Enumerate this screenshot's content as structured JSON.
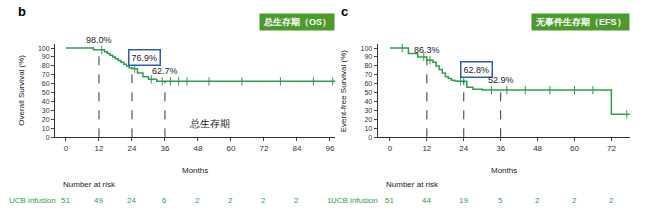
{
  "chart_data": [
    {
      "type": "line",
      "label": "b",
      "title": "总生存期（OS）",
      "xlabel": "Months",
      "ylabel": "Overall Survival (%)",
      "note": "总生存期",
      "color": "#2e9e4e",
      "line_style": "step",
      "marker": "tick",
      "grid": false,
      "x": [
        0,
        10,
        12,
        14,
        15,
        16,
        17,
        18,
        19,
        20,
        21,
        22,
        23,
        24,
        26,
        28,
        30,
        33,
        98
      ],
      "values": [
        100,
        98,
        98,
        96,
        94,
        92,
        90,
        88,
        86,
        84,
        82,
        80,
        78,
        76.9,
        72,
        68,
        65,
        62.7,
        62.7
      ],
      "censored": {
        "x": [
          13,
          25,
          31,
          35,
          38,
          41,
          44,
          52,
          64,
          78,
          90,
          97
        ],
        "values": [
          98,
          76.9,
          65,
          62.7,
          62.7,
          62.7,
          62.7,
          62.7,
          62.7,
          62.7,
          62.7,
          62.7
        ]
      },
      "annotations": [
        {
          "x": 12,
          "y": 98.0,
          "text": "98.0%"
        },
        {
          "x": 24,
          "y": 76.9,
          "text": "76.9%"
        },
        {
          "x": 36,
          "y": 62.7,
          "text": "62.7%"
        }
      ],
      "xlim": [
        -4,
        98
      ],
      "xticks": [
        0,
        12,
        24,
        36,
        48,
        60,
        72,
        84,
        96
      ],
      "ylim": [
        0,
        105
      ],
      "yticks": [
        0,
        10,
        20,
        30,
        40,
        50,
        60,
        70,
        80,
        90,
        100
      ],
      "risk_table": {
        "title": "Number at risk",
        "name": "UCB infusion",
        "x": [
          0,
          12,
          24,
          36,
          48,
          60,
          72,
          84,
          96
        ],
        "values": [
          51,
          49,
          24,
          6,
          2,
          2,
          2,
          2,
          1
        ]
      }
    },
    {
      "type": "line",
      "label": "c",
      "title": "无事件生存期（EFS）",
      "xlabel": "Months",
      "ylabel": "Event-free Survival (%)",
      "color": "#2e9e4e",
      "line_style": "step",
      "marker": "tick",
      "grid": false,
      "x": [
        0,
        6,
        9,
        12,
        14,
        15,
        16,
        17,
        18,
        19,
        20,
        21,
        22,
        25,
        27,
        30,
        72,
        78
      ],
      "values": [
        100,
        94,
        90,
        86.3,
        84,
        80,
        76,
        72,
        68,
        66,
        64,
        63,
        62.8,
        56,
        54,
        52.9,
        26,
        26
      ],
      "censored": {
        "x": [
          4,
          11,
          13,
          23,
          24,
          33,
          38,
          44,
          52,
          60,
          66,
          77
        ],
        "values": [
          100,
          90,
          86.3,
          62.8,
          62.8,
          52.9,
          52.9,
          52.9,
          52.9,
          52.9,
          52.9,
          26
        ]
      },
      "annotations": [
        {
          "x": 12,
          "y": 86.3,
          "text": "86.3%"
        },
        {
          "x": 24,
          "y": 62.8,
          "text": "62.8%"
        },
        {
          "x": 36,
          "y": 52.9,
          "text": "52.9%"
        }
      ],
      "xlim": [
        -4,
        78
      ],
      "xticks": [
        0,
        12,
        24,
        36,
        48,
        60,
        72
      ],
      "ylim": [
        0,
        105
      ],
      "yticks": [
        0,
        10,
        20,
        30,
        40,
        50,
        60,
        70,
        80,
        90,
        100
      ],
      "risk_table": {
        "title": "Number at risk",
        "name": "UCB infusion",
        "x": [
          0,
          12,
          24,
          36,
          48,
          60,
          72
        ],
        "values": [
          51,
          44,
          19,
          5,
          2,
          2,
          2
        ]
      }
    }
  ]
}
